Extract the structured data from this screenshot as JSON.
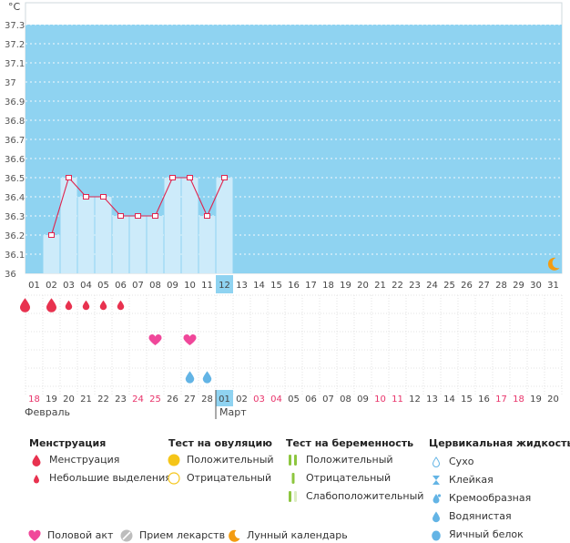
{
  "chart_data": {
    "type": "line",
    "unit_label": "°C",
    "y_ticks": [
      "37.3",
      "37.2",
      "37.1",
      "37",
      "36.9",
      "36.8",
      "36.7",
      "36.6",
      "36.5",
      "36.4",
      "36.3",
      "36.2",
      "36.1",
      "36"
    ],
    "ylim": [
      36,
      37.3
    ],
    "days": [
      "01",
      "02",
      "03",
      "04",
      "05",
      "06",
      "07",
      "08",
      "09",
      "10",
      "11",
      "12",
      "13",
      "14",
      "15",
      "16",
      "17",
      "18",
      "19",
      "20",
      "21",
      "22",
      "23",
      "24",
      "25",
      "26",
      "27",
      "28",
      "29",
      "30",
      "31"
    ],
    "current_day": "12",
    "temperature": [
      null,
      36.2,
      36.5,
      36.4,
      36.4,
      36.3,
      36.3,
      36.3,
      36.5,
      36.5,
      36.3,
      36.5,
      null,
      null,
      null,
      null,
      null,
      null,
      null,
      null,
      null,
      null,
      null,
      null,
      null,
      null,
      null,
      null,
      null,
      null,
      null
    ],
    "menstruation": [
      {
        "day": 1,
        "kind": "heavy"
      },
      {
        "day": 2,
        "kind": "heavy"
      },
      {
        "day": 3,
        "kind": "light"
      },
      {
        "day": 4,
        "kind": "light"
      },
      {
        "day": 5,
        "kind": "light"
      },
      {
        "day": 6,
        "kind": "light"
      }
    ],
    "intercourse_days": [
      8,
      10
    ],
    "fluid": [
      {
        "day": 10,
        "kind": "watery"
      },
      {
        "day": 11,
        "kind": "watery"
      }
    ],
    "moon_day": 31,
    "dates": [
      "18",
      "19",
      "20",
      "21",
      "22",
      "23",
      "24",
      "25",
      "26",
      "27",
      "28",
      "01",
      "02",
      "03",
      "04",
      "05",
      "06",
      "07",
      "08",
      "09",
      "10",
      "11",
      "12",
      "13",
      "14",
      "15",
      "16",
      "17",
      "18",
      "19",
      "20"
    ],
    "weekend_idx": [
      0,
      6,
      7,
      13,
      14,
      20,
      21,
      27,
      28
    ],
    "today_date_idx": 11,
    "month_start": {
      "label": "Февраль"
    },
    "month_next": {
      "label": "Март",
      "idx": 11
    }
  },
  "colors": {
    "plot_bg": "#8fd3f1",
    "bar": "#cdebfa",
    "line": "#e0234d",
    "drop": "#e8324f",
    "heart": "#f0479a",
    "fluid": "#63b4e5",
    "weekend": "#e8336a",
    "today_bg": "#8fd3f1",
    "moon": "#f39c12",
    "ovulation_pos": "#f5c518",
    "preg_test": "#8dc63f"
  },
  "legend": {
    "menstruation": {
      "title": "Менструация",
      "items": [
        "Менструация",
        "Небольшие выделения"
      ]
    },
    "ovulation": {
      "title": "Тест на овуляцию",
      "items": [
        "Положительный",
        "Отрицательный"
      ]
    },
    "pregnancy": {
      "title": "Тест на беременность",
      "items": [
        "Положительный",
        "Отрицательный",
        "Слабоположительный"
      ]
    },
    "fluid": {
      "title": "Цервикальная жидкость",
      "items": [
        "Сухо",
        "Клейкая",
        "Кремообразная",
        "Водянистая",
        "Яичный белок"
      ]
    },
    "bottom": [
      "Половой акт",
      "Прием лекарств",
      "Лунный календарь"
    ]
  }
}
